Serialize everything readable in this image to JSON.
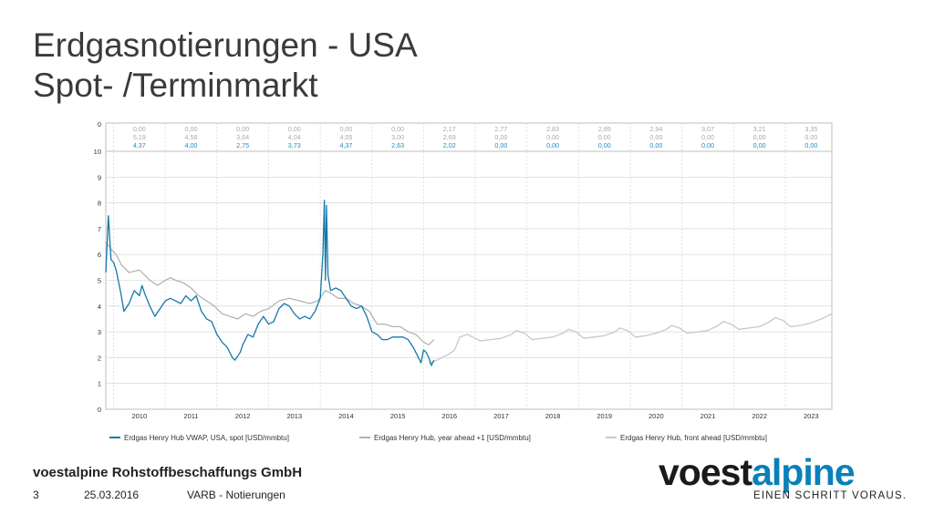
{
  "title": {
    "line1": "Erdgasnotierungen - USA",
    "line2": "Spot- /Terminmarkt"
  },
  "footer": {
    "company": "voestalpine Rohstoffbeschaffungs GmbH",
    "page": "3",
    "date": "25.03.2016",
    "section": "VARB - Notierungen"
  },
  "logo": {
    "part1": "voest",
    "part2": "alpine",
    "slogan": "EINEN SCHRITT VORAUS."
  },
  "colors": {
    "spot": "#1478aa",
    "year_ahead": "#b4b4b4",
    "front_ahead": "#c8c8c8",
    "table_blue": "#1a8fc4",
    "table_gray": "#aaaaaa",
    "grid": "#d0d0d0"
  },
  "chart_data": {
    "type": "line",
    "ylim": [
      0,
      10
    ],
    "yticks": [
      "0",
      "1",
      "2",
      "3",
      "4",
      "5",
      "6",
      "7",
      "8",
      "9",
      "10"
    ],
    "table_zero_label": "0",
    "x_range": [
      2009.85,
      2023.9
    ],
    "year_labels": [
      "2010",
      "2011",
      "2012",
      "2013",
      "2014",
      "2015",
      "2016",
      "2017",
      "2018",
      "2019",
      "2020",
      "2021",
      "2022",
      "2023"
    ],
    "yearly_table": {
      "row_front_ahead": [
        "0,00",
        "0,00",
        "0,00",
        "0,00",
        "0,00",
        "0,00",
        "2,17",
        "2,77",
        "2,83",
        "2,85",
        "2,94",
        "3,07",
        "3,21",
        "3,35"
      ],
      "row_year_ahead": [
        "5,19",
        "4,56",
        "3,64",
        "4,04",
        "4,05",
        "3,00",
        "2,69",
        "0,00",
        "0,00",
        "0,00",
        "0,00",
        "0,00",
        "0,00",
        "0,00"
      ],
      "row_spot": [
        "4,37",
        "4,00",
        "2,75",
        "3,73",
        "4,37",
        "2,63",
        "2,02",
        "0,00",
        "0,00",
        "0,00",
        "0,00",
        "0,00",
        "0,00",
        "0,00"
      ]
    },
    "series": [
      {
        "name": "Erdgas Henry Hub VWAP, USA, spot [USD/mmbtu]",
        "x": [
          2009.85,
          2009.9,
          2009.95,
          2010.0,
          2010.05,
          2010.1,
          2010.15,
          2010.2,
          2010.3,
          2010.4,
          2010.5,
          2010.55,
          2010.6,
          2010.7,
          2010.8,
          2010.9,
          2011.0,
          2011.1,
          2011.2,
          2011.3,
          2011.4,
          2011.5,
          2011.6,
          2011.7,
          2011.8,
          2011.9,
          2012.0,
          2012.1,
          2012.2,
          2012.3,
          2012.35,
          2012.45,
          2012.5,
          2012.6,
          2012.7,
          2012.8,
          2012.9,
          2013.0,
          2013.1,
          2013.2,
          2013.3,
          2013.4,
          2013.5,
          2013.6,
          2013.7,
          2013.8,
          2013.9,
          2014.0,
          2014.05,
          2014.08,
          2014.1,
          2014.12,
          2014.15,
          2014.2,
          2014.3,
          2014.4,
          2014.5,
          2014.6,
          2014.7,
          2014.8,
          2014.9,
          2015.0,
          2015.1,
          2015.2,
          2015.3,
          2015.4,
          2015.5,
          2015.6,
          2015.7,
          2015.8,
          2015.85,
          2015.9,
          2015.95,
          2016.0,
          2016.05,
          2016.1,
          2016.15,
          2016.2
        ],
        "y": [
          5.3,
          7.5,
          5.8,
          5.7,
          5.4,
          4.9,
          4.4,
          3.8,
          4.1,
          4.6,
          4.4,
          4.8,
          4.5,
          4.0,
          3.6,
          3.9,
          4.2,
          4.3,
          4.2,
          4.1,
          4.4,
          4.2,
          4.4,
          3.8,
          3.5,
          3.4,
          2.9,
          2.6,
          2.4,
          2.0,
          1.9,
          2.2,
          2.5,
          2.9,
          2.8,
          3.3,
          3.6,
          3.3,
          3.4,
          3.9,
          4.1,
          4.0,
          3.7,
          3.5,
          3.6,
          3.5,
          3.8,
          4.3,
          6.0,
          8.1,
          5.0,
          7.9,
          5.2,
          4.6,
          4.7,
          4.6,
          4.3,
          4.0,
          3.9,
          4.0,
          3.6,
          3.0,
          2.9,
          2.7,
          2.7,
          2.8,
          2.8,
          2.8,
          2.7,
          2.4,
          2.2,
          2.0,
          1.8,
          2.3,
          2.2,
          2.0,
          1.7,
          1.9
        ]
      },
      {
        "name": "Erdgas Henry Hub, year ahead +1 [USD/mmbtu]",
        "x": [
          2009.85,
          2009.95,
          2010.05,
          2010.15,
          2010.3,
          2010.5,
          2010.7,
          2010.85,
          2011.0,
          2011.1,
          2011.2,
          2011.35,
          2011.5,
          2011.65,
          2011.8,
          2011.95,
          2012.1,
          2012.25,
          2012.4,
          2012.55,
          2012.7,
          2012.85,
          2013.0,
          2013.2,
          2013.4,
          2013.6,
          2013.8,
          2013.95,
          2014.1,
          2014.2,
          2014.35,
          2014.5,
          2014.65,
          2014.8,
          2014.95,
          2015.1,
          2015.25,
          2015.4,
          2015.55,
          2015.7,
          2015.85,
          2016.0,
          2016.1,
          2016.2
        ],
        "y": [
          6.5,
          6.2,
          6.0,
          5.6,
          5.3,
          5.4,
          5.0,
          4.8,
          5.0,
          5.1,
          5.0,
          4.9,
          4.7,
          4.4,
          4.2,
          4.0,
          3.7,
          3.6,
          3.5,
          3.7,
          3.6,
          3.8,
          3.9,
          4.2,
          4.3,
          4.2,
          4.1,
          4.2,
          4.6,
          4.5,
          4.3,
          4.3,
          4.1,
          4.0,
          3.8,
          3.3,
          3.3,
          3.2,
          3.2,
          3.0,
          2.9,
          2.6,
          2.5,
          2.7
        ]
      },
      {
        "name": "Erdgas Henry Hub, front ahead [USD/mmbtu]",
        "x": [
          2016.1,
          2016.2,
          2016.35,
          2016.5,
          2016.6,
          2016.7,
          2016.85,
          2016.95,
          2017.1,
          2017.3,
          2017.5,
          2017.7,
          2017.8,
          2017.95,
          2018.1,
          2018.3,
          2018.5,
          2018.7,
          2018.8,
          2018.95,
          2019.1,
          2019.3,
          2019.5,
          2019.7,
          2019.8,
          2019.95,
          2020.1,
          2020.3,
          2020.5,
          2020.7,
          2020.8,
          2020.95,
          2021.1,
          2021.3,
          2021.5,
          2021.7,
          2021.8,
          2021.95,
          2022.1,
          2022.3,
          2022.5,
          2022.7,
          2022.8,
          2022.95,
          2023.1,
          2023.3,
          2023.5,
          2023.7,
          2023.8,
          2023.9
        ],
        "y": [
          1.8,
          1.85,
          2.0,
          2.15,
          2.3,
          2.8,
          2.9,
          2.8,
          2.65,
          2.7,
          2.75,
          2.9,
          3.05,
          2.95,
          2.7,
          2.75,
          2.8,
          2.95,
          3.1,
          3.0,
          2.75,
          2.8,
          2.85,
          3.0,
          3.15,
          3.05,
          2.8,
          2.85,
          2.95,
          3.1,
          3.25,
          3.15,
          2.95,
          3.0,
          3.05,
          3.25,
          3.4,
          3.3,
          3.1,
          3.15,
          3.2,
          3.4,
          3.55,
          3.45,
          3.2,
          3.25,
          3.35,
          3.5,
          3.6,
          3.7
        ]
      }
    ]
  }
}
